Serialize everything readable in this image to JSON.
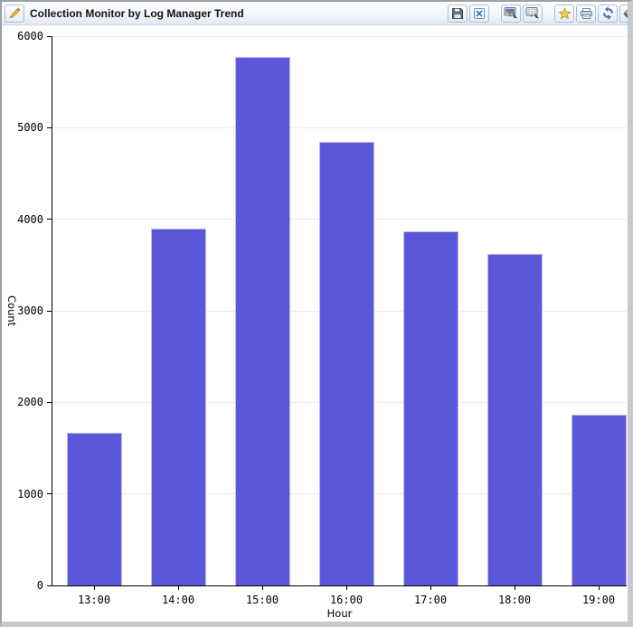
{
  "window": {
    "title": "Collection Monitor by Log Manager Trend"
  },
  "toolbar": {
    "icon_names": [
      "pencil-icon",
      "save-icon",
      "close-icon",
      "chart-view-icon",
      "table-view-icon",
      "favorite-star-icon",
      "print-icon",
      "refresh-icon",
      "tag-icon"
    ]
  },
  "chart_data": {
    "type": "bar",
    "title": "Collection Monitor by Log Manager Trend",
    "categories": [
      "13:00",
      "14:00",
      "15:00",
      "16:00",
      "17:00",
      "18:00",
      "19:00"
    ],
    "values": [
      1670,
      3900,
      5770,
      4850,
      3870,
      3620,
      1870
    ],
    "xlabel": "Hour",
    "ylabel": "Count",
    "ylim": [
      0,
      6000
    ],
    "yticks": [
      0,
      1000,
      2000,
      3000,
      4000,
      5000,
      6000
    ],
    "grid": true,
    "legend": "none",
    "bar_color": "#5a58d8",
    "bar_border_color": "#bdbbf0",
    "grid_color": "#ececec",
    "axis_color": "#000000"
  }
}
